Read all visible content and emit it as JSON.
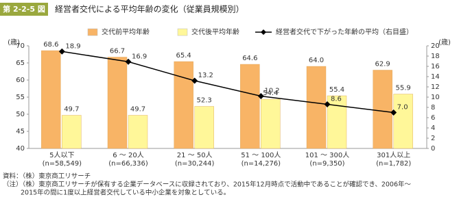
{
  "header": {
    "figure_number": "第 2-2-5 図",
    "title": "経営者交代による平均年齢の変化（従業員規模別）"
  },
  "chart_data": {
    "type": "bar",
    "y_axis_label": "(歳)",
    "y2_axis_label": "(歳)",
    "categories": [
      "5人以下",
      "6 ～ 20人",
      "21 ～ 50人",
      "51 ～ 100人",
      "101 ～ 300人",
      "301人以上"
    ],
    "category_counts": [
      "(n=58,549)",
      "(n=66,336)",
      "(n=30,244)",
      "(n=14,276)",
      "(n=9,350)",
      "(n=1,782)"
    ],
    "series": [
      {
        "name": "交代前平均年齢",
        "color": "#f8b466",
        "values": [
          68.6,
          66.7,
          65.4,
          64.6,
          64.0,
          62.9
        ],
        "value_labels": [
          "68.6",
          "66.7",
          "65.4",
          "64.6",
          "64.0",
          "62.9"
        ]
      },
      {
        "name": "交代後平均年齢",
        "color": "#fff799",
        "values": [
          49.7,
          49.7,
          52.3,
          54.4,
          55.4,
          55.9
        ],
        "value_labels": [
          "49.7",
          "49.7",
          "52.3",
          "54.4",
          "55.4",
          "55.9"
        ]
      },
      {
        "name": "経営者交代で下がった年齢の平均（右目盛）",
        "color": "#000000",
        "type": "line",
        "axis": "y2",
        "values": [
          18.9,
          16.9,
          13.2,
          10.2,
          8.6,
          7.0
        ],
        "value_labels": [
          "18.9",
          "16.9",
          "13.2",
          "10.2",
          "8.6",
          "7.0"
        ]
      }
    ],
    "ylim": [
      40,
      70
    ],
    "yticks": [
      40,
      45,
      50,
      55,
      60,
      65,
      70
    ],
    "y2lim": [
      0,
      20
    ],
    "y2ticks": [
      0,
      2,
      4,
      6,
      8,
      10,
      12,
      14,
      16,
      18,
      20
    ],
    "grid": false,
    "legend": "top"
  },
  "notes": [
    "資料：（株）東京商工リサーチ",
    "（注）（株）東京商工リサーチが保有する企業データベースに収録されており、2015年12月時点で活動中であることが確認でき、2006年～",
    "2015年の間に1度以上経営者交代している中小企業を対象としている。"
  ]
}
